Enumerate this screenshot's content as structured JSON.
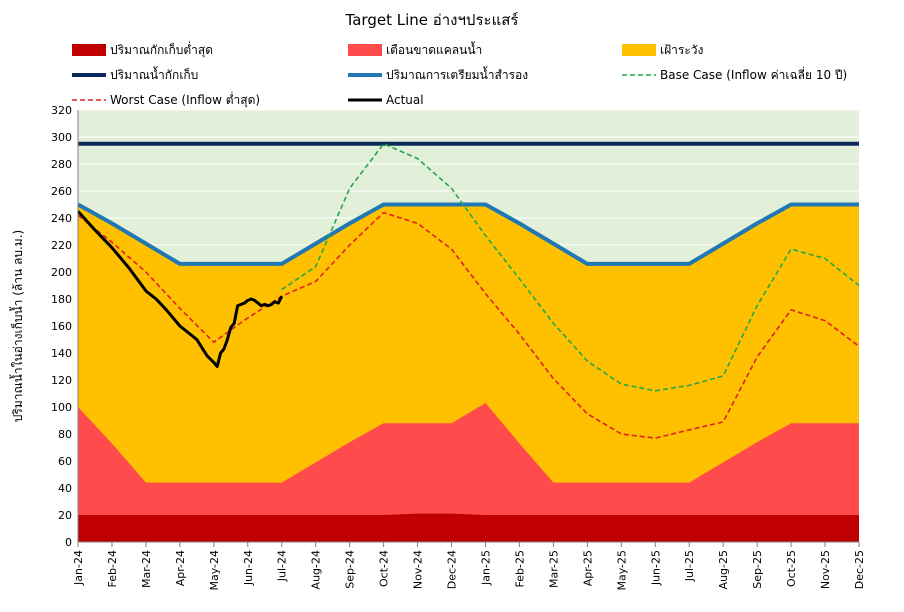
{
  "chart_data": {
    "type": "area",
    "title": "Target Line อ่างฯประแสร์",
    "xlabel": "",
    "ylabel": "ปริมาณน้ำในอ่างเก็บน้ำ (ล้าน ลบ.ม.)",
    "ylim": [
      0,
      320
    ],
    "yticks": [
      0,
      20,
      40,
      60,
      80,
      100,
      120,
      140,
      160,
      180,
      200,
      220,
      240,
      260,
      280,
      300,
      320
    ],
    "categories": [
      "Jan-24",
      "Feb-24",
      "Mar-24",
      "Apr-24",
      "May-24",
      "Jun-24",
      "Jul-24",
      "Aug-24",
      "Sep-24",
      "Oct-24",
      "Nov-24",
      "Dec-24",
      "Jan-25",
      "Feb-25",
      "Mar-25",
      "Apr-25",
      "May-25",
      "Jun-25",
      "Jul-25",
      "Aug-25",
      "Sep-25",
      "Oct-25",
      "Nov-25",
      "Dec-25"
    ],
    "legend_position": "top",
    "series": [
      {
        "name": "ปริมาณกักเก็บต่ำสุด",
        "kind": "area",
        "color": "#C00000",
        "values": [
          20,
          20,
          20,
          20,
          20,
          20,
          20,
          20,
          20,
          20,
          21,
          21,
          20,
          20,
          20,
          20,
          20,
          20,
          20,
          20,
          20,
          20,
          20,
          20
        ]
      },
      {
        "name": "เตือนขาดแคลนน้ำ",
        "kind": "area",
        "color": "#FF4B4B",
        "values": [
          100,
          73,
          44,
          44,
          44,
          44,
          44,
          59,
          74,
          88,
          88,
          88,
          103,
          73,
          44,
          44,
          44,
          44,
          44,
          59,
          74,
          88,
          88,
          88
        ]
      },
      {
        "name": "เฝ้าระวัง",
        "kind": "area",
        "color": "#FFC000",
        "values": [
          250,
          236,
          221,
          206,
          206,
          206,
          206,
          221,
          236,
          250,
          250,
          250,
          250,
          236,
          221,
          206,
          206,
          206,
          206,
          221,
          236,
          250,
          250,
          250
        ]
      },
      {
        "name": "ปริมาณน้ำกักเก็บ",
        "kind": "line",
        "color": "#0B2A5B",
        "dash": "solid",
        "values": [
          295,
          295,
          295,
          295,
          295,
          295,
          295,
          295,
          295,
          295,
          295,
          295,
          295,
          295,
          295,
          295,
          295,
          295,
          295,
          295,
          295,
          295,
          295,
          295
        ]
      },
      {
        "name": "ปริมาณการเตรียมน้ำสำรอง",
        "kind": "line",
        "color": "#1F78B4",
        "dash": "solid",
        "values": [
          250,
          236,
          221,
          206,
          206,
          206,
          206,
          221,
          236,
          250,
          250,
          250,
          250,
          236,
          221,
          206,
          206,
          206,
          206,
          221,
          236,
          250,
          250,
          250
        ]
      },
      {
        "name": "Base Case (Inflow ค่าเฉลี่ย 10 ปี)",
        "kind": "line",
        "color": "#22A846",
        "dash": "dashed",
        "values": [
          null,
          null,
          null,
          null,
          null,
          null,
          187,
          204,
          262,
          295,
          284,
          262,
          227,
          195,
          162,
          134,
          117,
          112,
          116,
          123,
          175,
          217,
          210,
          190
        ]
      },
      {
        "name": "Worst Case (Inflow ต่ำสุด)",
        "kind": "line",
        "color": "#E02020",
        "dash": "dashed",
        "values": [
          242,
          222,
          200,
          173,
          148,
          166,
          182,
          193,
          220,
          244,
          236,
          217,
          184,
          154,
          121,
          95,
          80,
          77,
          83,
          89,
          137,
          172,
          164,
          145
        ]
      },
      {
        "name": "Actual",
        "kind": "line",
        "color": "#000000",
        "dash": "solid",
        "x": [
          0,
          0.5,
          1,
          1.5,
          2,
          2.3,
          2.6,
          3,
          3.5,
          3.8,
          4,
          4.1,
          4.2,
          4.3,
          4.4,
          4.5,
          4.6,
          4.7,
          4.8,
          4.9,
          5,
          5.1,
          5.2,
          5.3,
          5.4,
          5.5,
          5.6,
          5.7,
          5.8,
          5.9,
          6
        ],
        "values": [
          245,
          231,
          218,
          203,
          186,
          180,
          172,
          160,
          150,
          138,
          133,
          130,
          140,
          143,
          150,
          159,
          162,
          175,
          176,
          177,
          179,
          180,
          179,
          177,
          175,
          176,
          175,
          176,
          178,
          177,
          182
        ]
      }
    ]
  }
}
